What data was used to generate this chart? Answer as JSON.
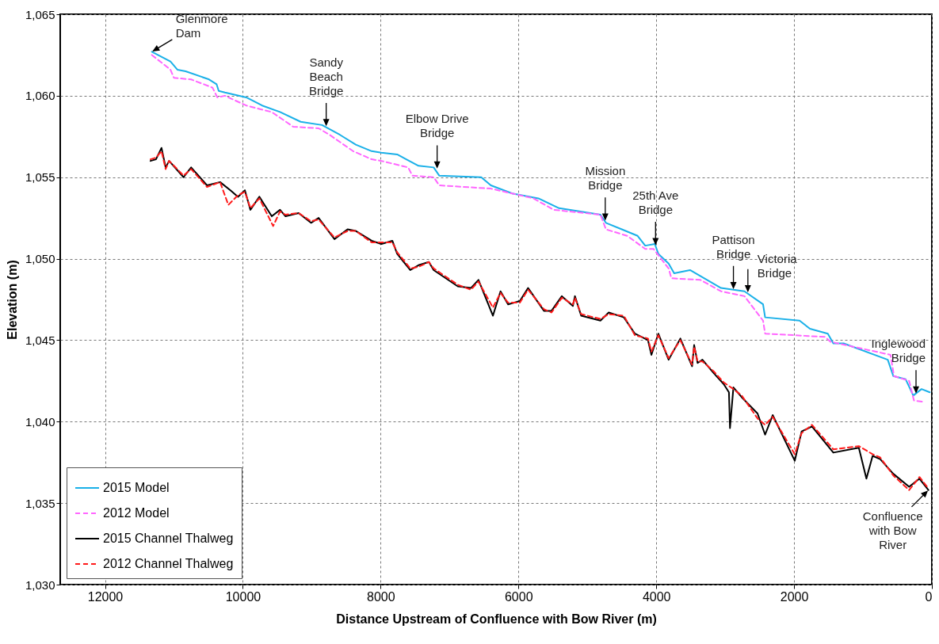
{
  "chart_data": {
    "type": "line",
    "xlabel": "Distance Upstream of Confluence with Bow River (m)",
    "ylabel": "Elevation (m)",
    "xlim": [
      12650,
      0
    ],
    "xticks": [
      12000,
      10000,
      8000,
      6000,
      4000,
      2000,
      0
    ],
    "ylim": [
      1030,
      1065
    ],
    "yticks": [
      {
        "value": 1030,
        "label": "1,030"
      },
      {
        "value": 1035,
        "label": "1,035"
      },
      {
        "value": 1040,
        "label": "1,040"
      },
      {
        "value": 1045,
        "label": "1,045"
      },
      {
        "value": 1050,
        "label": "1,050"
      },
      {
        "value": 1055,
        "label": "1,055"
      },
      {
        "value": 1060,
        "label": "1,060"
      },
      {
        "value": 1065,
        "label": "1,065"
      }
    ],
    "grid": true,
    "legend": "bottom left",
    "series": [
      {
        "name": "2015 Model",
        "color": "#1ab0e8",
        "line_style": "solid",
        "x": [
          11320,
          11050,
          10950,
          10830,
          10490,
          10380,
          10350,
          10260,
          9950,
          9720,
          9460,
          9160,
          8850,
          8590,
          8360,
          8130,
          7990,
          7760,
          7450,
          7230,
          7150,
          6540,
          6400,
          6090,
          5710,
          5410,
          4810,
          4730,
          4500,
          4270,
          4160,
          4020,
          3970,
          3820,
          3740,
          3510,
          3060,
          2720,
          2450,
          2420,
          1920,
          1770,
          1510,
          1430,
          1280,
          640,
          560,
          380,
          270,
          150,
          30
        ],
        "values": [
          1062.7,
          1062.1,
          1061.6,
          1061.5,
          1061.0,
          1060.7,
          1060.3,
          1060.2,
          1059.9,
          1059.4,
          1059.0,
          1058.4,
          1058.2,
          1057.6,
          1057.0,
          1056.6,
          1056.5,
          1056.4,
          1055.7,
          1055.6,
          1055.1,
          1055.0,
          1054.5,
          1054.0,
          1053.7,
          1053.1,
          1052.7,
          1052.2,
          1051.8,
          1051.4,
          1050.8,
          1050.9,
          1050.3,
          1049.7,
          1049.1,
          1049.3,
          1048.2,
          1048.0,
          1047.2,
          1046.4,
          1046.2,
          1045.7,
          1045.4,
          1044.8,
          1044.8,
          1043.8,
          1042.8,
          1042.6,
          1041.6,
          1042.0,
          1041.8
        ]
      },
      {
        "name": "2012 Model",
        "color": "#ff66ff",
        "line_style": "dashed",
        "x": [
          11320,
          11050,
          11000,
          10750,
          10440,
          10370,
          10260,
          9950,
          9580,
          9270,
          8900,
          8740,
          8400,
          8130,
          7990,
          7600,
          7540,
          7230,
          7150,
          6400,
          5780,
          5490,
          4810,
          4730,
          4420,
          4160,
          4040,
          3820,
          3780,
          3360,
          3060,
          2720,
          2450,
          2420,
          1550,
          1470,
          600,
          550,
          330,
          260,
          100
        ],
        "values": [
          1062.5,
          1061.6,
          1061.1,
          1061.0,
          1060.5,
          1059.9,
          1060.0,
          1059.4,
          1059.0,
          1058.1,
          1058.0,
          1057.6,
          1056.6,
          1056.1,
          1056.0,
          1055.6,
          1055.1,
          1055.0,
          1054.5,
          1054.3,
          1053.7,
          1053.0,
          1052.7,
          1051.8,
          1051.4,
          1050.6,
          1050.6,
          1049.4,
          1048.8,
          1048.7,
          1048.0,
          1047.7,
          1046.2,
          1045.4,
          1045.2,
          1044.9,
          1044.1,
          1042.8,
          1042.5,
          1041.3,
          1041.2
        ]
      },
      {
        "name": "2015 Channel Thalweg",
        "color": "#000000",
        "line_style": "solid",
        "x": [
          11340,
          11260,
          11180,
          11120,
          11070,
          10860,
          10750,
          10520,
          10330,
          10180,
          10070,
          9970,
          9890,
          9760,
          9580,
          9460,
          9380,
          9190,
          9010,
          8900,
          8670,
          8480,
          8360,
          8130,
          7990,
          7830,
          7760,
          7570,
          7450,
          7300,
          7230,
          6880,
          6690,
          6580,
          6370,
          6260,
          6150,
          5980,
          5860,
          5630,
          5520,
          5370,
          5210,
          5180,
          5090,
          4810,
          4690,
          4470,
          4310,
          4120,
          4070,
          3970,
          3820,
          3650,
          3480,
          3450,
          3400,
          3330,
          3170,
          3020,
          2945,
          2930,
          2880,
          2760,
          2530,
          2420,
          2310,
          1990,
          1890,
          1740,
          1430,
          1060,
          950,
          860,
          750,
          560,
          330,
          180,
          50
        ],
        "values": [
          1056.0,
          1056.1,
          1056.8,
          1055.6,
          1056.0,
          1055.0,
          1055.6,
          1054.5,
          1054.7,
          1054.2,
          1053.8,
          1054.2,
          1053.0,
          1053.8,
          1052.6,
          1053.0,
          1052.6,
          1052.8,
          1052.2,
          1052.5,
          1051.2,
          1051.8,
          1051.7,
          1051.1,
          1050.9,
          1051.1,
          1050.3,
          1049.3,
          1049.6,
          1049.8,
          1049.3,
          1048.3,
          1048.2,
          1048.7,
          1046.5,
          1048.0,
          1047.2,
          1047.4,
          1048.2,
          1046.8,
          1046.8,
          1047.7,
          1047.1,
          1047.7,
          1046.5,
          1046.2,
          1046.7,
          1046.4,
          1045.4,
          1045.0,
          1044.1,
          1045.4,
          1043.8,
          1045.1,
          1043.4,
          1044.7,
          1043.6,
          1043.8,
          1043.0,
          1042.3,
          1041.8,
          1039.6,
          1042.1,
          1041.5,
          1040.5,
          1039.2,
          1040.4,
          1037.6,
          1039.4,
          1039.7,
          1038.1,
          1038.4,
          1036.5,
          1037.9,
          1037.7,
          1036.8,
          1036.0,
          1036.5,
          1035.8
        ]
      },
      {
        "name": "2012 Channel Thalweg",
        "color": "#ff1a1a",
        "line_style": "dashed",
        "x": [
          11340,
          11260,
          11180,
          11120,
          11070,
          10860,
          10750,
          10520,
          10330,
          10210,
          10070,
          9970,
          9890,
          9760,
          9560,
          9460,
          9380,
          9190,
          9010,
          8900,
          8670,
          8480,
          8360,
          8130,
          7990,
          7830,
          7760,
          7570,
          7450,
          7300,
          7230,
          6880,
          6690,
          6580,
          6370,
          6260,
          6150,
          5980,
          5860,
          5630,
          5520,
          5370,
          5210,
          5180,
          5090,
          4810,
          4690,
          4470,
          4310,
          4120,
          4070,
          3970,
          3820,
          3650,
          3480,
          3450,
          3400,
          3330,
          3170,
          3020,
          2880,
          2760,
          2530,
          2420,
          2310,
          1990,
          1890,
          1740,
          1430,
          1060,
          860,
          750,
          560,
          330,
          180,
          50
        ],
        "values": [
          1056.1,
          1056.2,
          1056.6,
          1055.5,
          1056.0,
          1055.1,
          1055.5,
          1054.4,
          1054.7,
          1053.3,
          1053.9,
          1054.1,
          1053.1,
          1053.7,
          1052.0,
          1052.9,
          1052.7,
          1052.8,
          1052.3,
          1052.4,
          1051.3,
          1051.7,
          1051.7,
          1051.0,
          1051.0,
          1051.0,
          1050.4,
          1049.4,
          1049.5,
          1049.8,
          1049.4,
          1048.4,
          1048.1,
          1048.6,
          1047.0,
          1047.9,
          1047.3,
          1047.3,
          1048.1,
          1046.9,
          1046.7,
          1047.6,
          1047.2,
          1047.6,
          1046.6,
          1046.3,
          1046.6,
          1046.5,
          1045.3,
          1045.1,
          1044.3,
          1045.3,
          1043.9,
          1045.0,
          1043.5,
          1044.6,
          1043.7,
          1043.7,
          1043.1,
          1042.4,
          1042.0,
          1041.6,
          1040.2,
          1039.8,
          1040.3,
          1038.0,
          1039.3,
          1039.8,
          1038.3,
          1038.5,
          1038.0,
          1037.8,
          1036.7,
          1035.8,
          1036.6,
          1035.9
        ]
      }
    ],
    "annotations": [
      {
        "text": "Glenmore\nDam",
        "x": 11320,
        "y": 1062.7
      },
      {
        "text": "Sandy\nBeach\nBridge",
        "x": 8790,
        "y": 1058.1
      },
      {
        "text": "Elbow Drive\nBridge",
        "x": 7180,
        "y": 1055.5
      },
      {
        "text": "Mission\nBridge",
        "x": 4740,
        "y": 1052.3
      },
      {
        "text": "25th Ave\nBridge",
        "x": 4010,
        "y": 1050.8
      },
      {
        "text": "Pattison\nBridge",
        "x": 2880,
        "y": 1048.1
      },
      {
        "text": "Victoria\nBridge",
        "x": 2670,
        "y": 1047.9
      },
      {
        "text": "Inglewood\nBridge",
        "x": 230,
        "y": 1041.7
      },
      {
        "text": "Confluence\nwith Bow\nRiver",
        "x": 50,
        "y": 1035.8
      }
    ]
  }
}
